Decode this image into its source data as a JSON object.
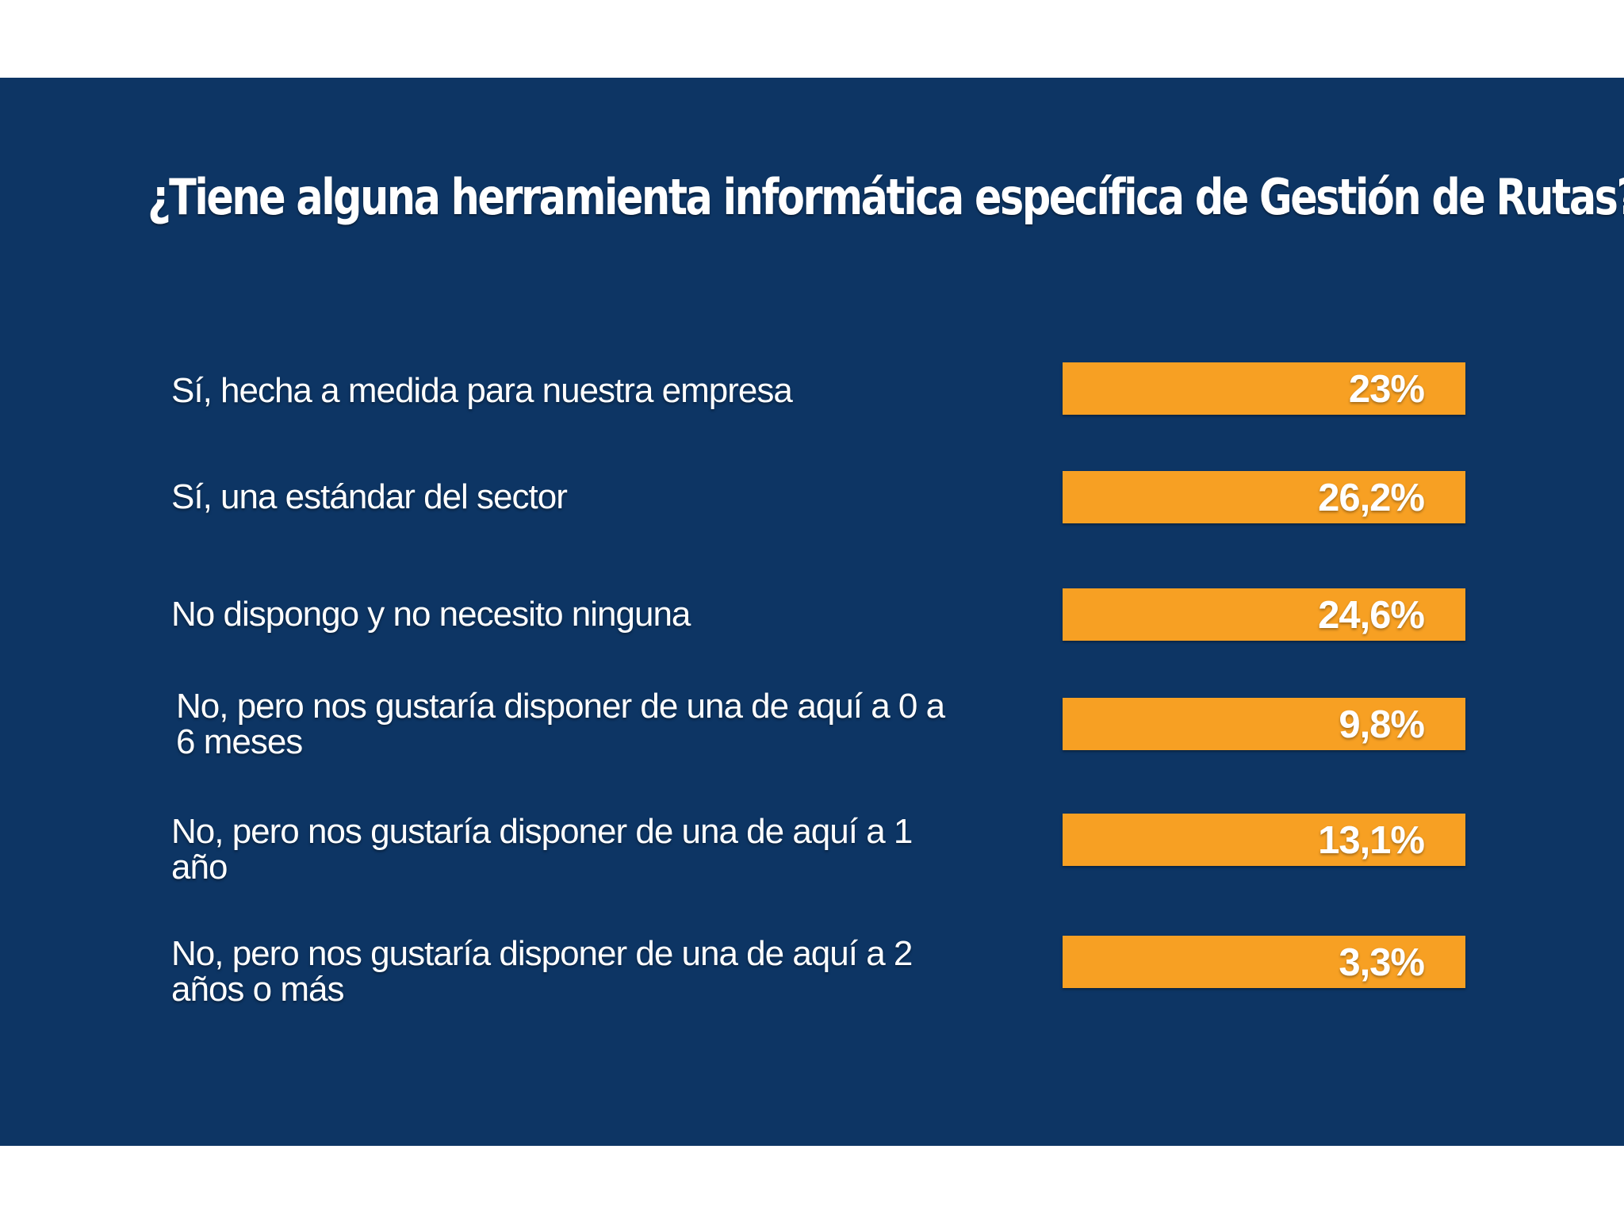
{
  "chart_data": {
    "type": "bar",
    "orientation": "horizontal",
    "title": "¿Tiene alguna herramienta informática específica de Gestión de Rutas?",
    "categories": [
      "Sí, hecha a medida para nuestra empresa",
      "Sí, una estándar del sector",
      "No dispongo y no necesito ninguna",
      "No, pero nos gustaría disponer de una de aquí a 0 a 6 meses",
      "No, pero nos gustaría disponer de una de aquí a 1 año",
      "No, pero nos gustaría disponer de una de aquí a 2 años o más"
    ],
    "values": [
      23,
      26.2,
      24.6,
      9.8,
      13.1,
      3.3
    ],
    "value_labels": [
      "23%",
      "26,2%",
      "24,6%",
      "9,8%",
      "13,1%",
      "3,3%"
    ],
    "unit": "%",
    "xlabel": "",
    "ylabel": "",
    "colors": {
      "background": "#0d3564",
      "bar": "#f7a023",
      "text": "#ffffff"
    }
  }
}
